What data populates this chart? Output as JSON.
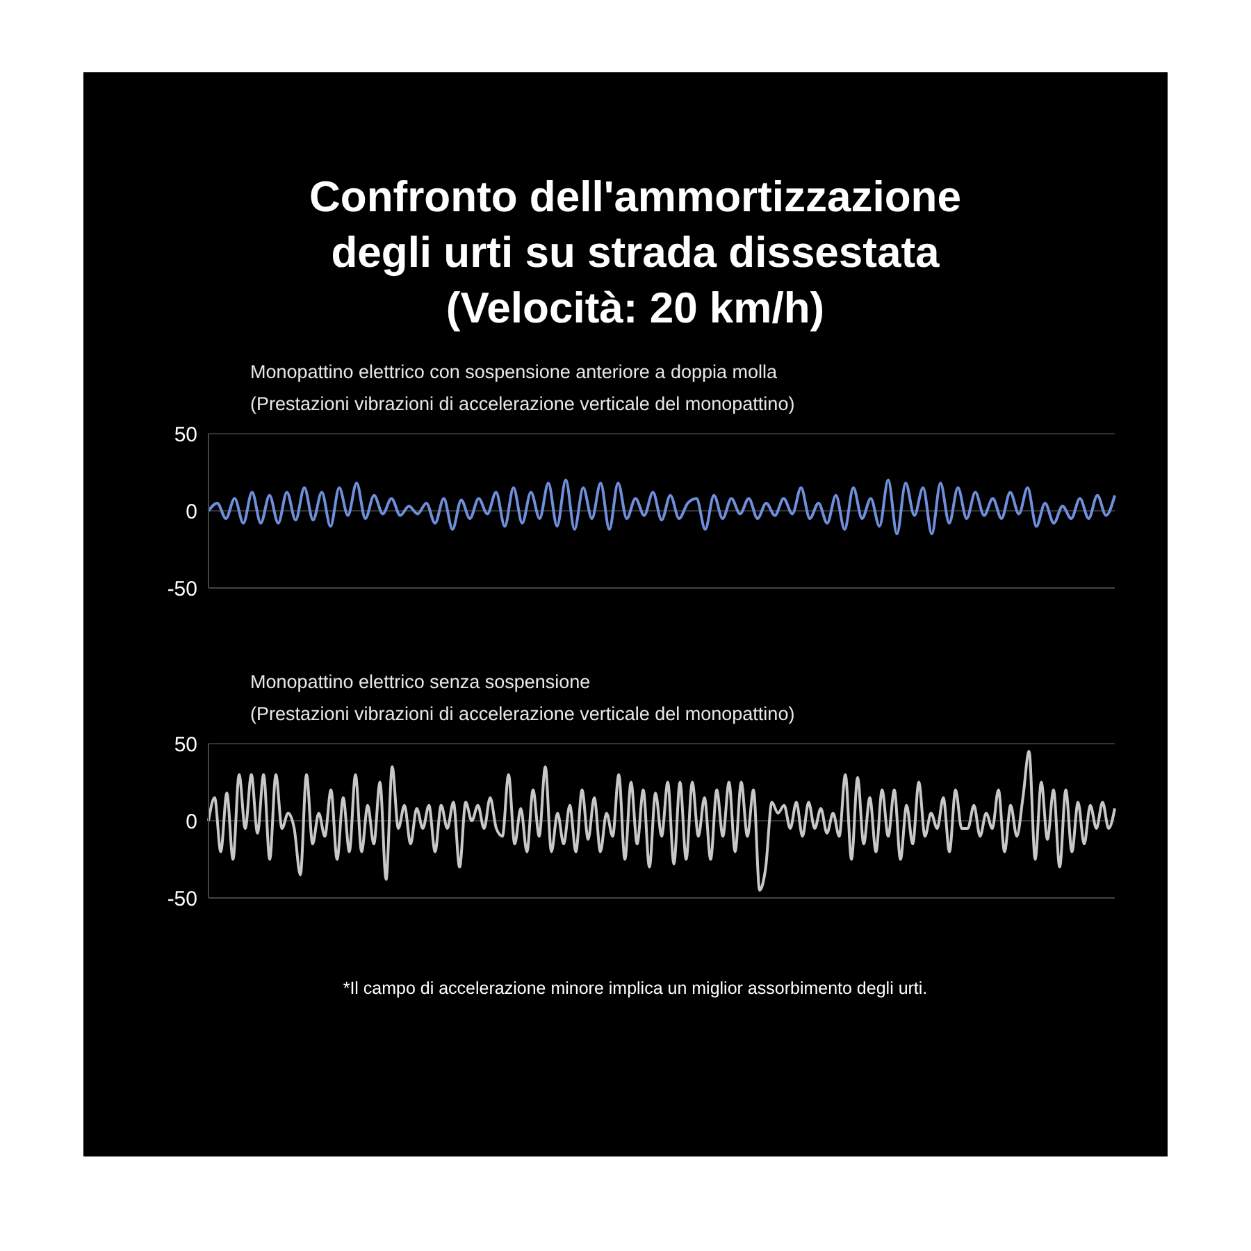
{
  "chart_data": [
    {
      "type": "line",
      "title": "Confronto dell'ammortizzazione\ndegli urti su strada dissestata\n(Velocità: 20 km/h)",
      "subtitle": "Monopattino elettrico con sospensione anteriore a doppia molla\n(Prestazioni vibrazioni di accelerazione verticale del monopattino)",
      "categories": [
        null,
        null,
        null,
        null,
        null,
        null,
        null,
        null,
        null,
        null,
        null,
        null,
        null,
        null,
        null,
        null,
        null,
        null,
        null,
        null,
        null,
        null,
        null,
        null,
        null,
        null,
        null,
        null,
        null,
        null,
        null,
        null,
        null,
        null,
        null,
        null,
        null,
        null,
        null,
        null,
        null,
        null,
        null,
        null,
        null,
        null,
        null,
        null,
        null,
        null,
        null,
        null,
        null,
        null,
        null,
        null,
        null,
        null,
        null,
        null,
        null,
        null,
        null,
        null,
        null,
        null,
        null,
        null,
        null,
        null,
        null,
        null,
        null,
        null,
        null,
        null,
        null,
        null,
        null,
        null,
        null,
        null,
        null,
        null,
        null,
        null,
        null,
        null,
        null,
        null,
        null,
        null,
        null,
        null,
        null,
        null,
        null,
        null,
        null,
        null,
        null,
        null,
        null,
        null,
        null
      ],
      "series": [
        {
          "color": "#6f8fdc",
          "values": [
            0,
            5,
            -5,
            8,
            -8,
            12,
            -8,
            10,
            -8,
            12,
            -6,
            15,
            -6,
            12,
            -10,
            15,
            -3,
            18,
            -5,
            10,
            -2,
            8,
            -3,
            3,
            -2,
            5,
            -8,
            8,
            -12,
            7,
            -5,
            8,
            -2,
            12,
            -10,
            15,
            -8,
            12,
            -5,
            18,
            -10,
            20,
            -12,
            15,
            -5,
            18,
            -12,
            18,
            -5,
            8,
            -3,
            12,
            -6,
            10,
            -5,
            5,
            8,
            -12,
            10,
            -5,
            8,
            -2,
            8,
            -5,
            5,
            -3,
            8,
            -2,
            15,
            -5,
            5,
            -8,
            10,
            -12,
            15,
            -5,
            8,
            -10,
            20,
            -15,
            18,
            -3,
            15,
            -15,
            18,
            -8,
            15,
            -5,
            12,
            -3,
            8,
            -5,
            12,
            -2,
            15,
            -10,
            5,
            -8,
            3,
            -5,
            8,
            -5,
            10,
            -3,
            10
          ]
        }
      ],
      "ylim": [
        -50,
        50
      ],
      "yticks": [
        -50,
        0,
        50
      ],
      "grid": "y",
      "line_style": "solid",
      "marker": "none",
      "tick_labels": "y"
    },
    {
      "type": "line",
      "subtitle": "Monopattino elettrico senza sospensione\n(Prestazioni vibrazioni di accelerazione verticale del monopattino)",
      "annotations": [
        "*Il campo di accelerazione minore implica un miglior assorbimento degli urti."
      ],
      "categories": [
        null,
        null,
        null,
        null,
        null,
        null,
        null,
        null,
        null,
        null,
        null,
        null,
        null,
        null,
        null,
        null,
        null,
        null,
        null,
        null,
        null,
        null,
        null,
        null,
        null,
        null,
        null,
        null,
        null,
        null,
        null,
        null,
        null,
        null,
        null,
        null,
        null,
        null,
        null,
        null,
        null,
        null,
        null,
        null,
        null,
        null,
        null,
        null,
        null,
        null,
        null,
        null,
        null,
        null,
        null,
        null,
        null,
        null,
        null,
        null,
        null,
        null,
        null,
        null,
        null,
        null,
        null,
        null,
        null,
        null,
        null,
        null,
        null,
        null,
        null,
        null,
        null,
        null,
        null,
        null,
        null,
        null,
        null,
        null,
        null,
        null,
        null,
        null,
        null,
        null,
        null,
        null,
        null,
        null,
        null,
        null,
        null,
        null,
        null,
        null,
        null,
        null,
        null,
        null,
        null,
        null,
        null,
        null,
        null,
        null,
        null,
        null,
        null,
        null,
        null,
        null,
        null,
        null,
        null,
        null,
        null,
        null,
        null,
        null,
        null,
        null,
        null,
        null,
        null,
        null,
        null,
        null,
        null,
        null,
        null,
        null,
        null,
        null,
        null,
        null,
        null,
        null,
        null,
        null,
        null,
        null,
        null,
        null,
        null
      ],
      "series": [
        {
          "color": "#c8c8c8",
          "values": [
            0,
            15,
            -20,
            18,
            -25,
            30,
            -5,
            30,
            -8,
            30,
            -25,
            30,
            -5,
            5,
            -5,
            -35,
            30,
            -15,
            5,
            -10,
            20,
            -25,
            15,
            -20,
            30,
            -20,
            10,
            -15,
            25,
            -38,
            35,
            -5,
            10,
            -15,
            8,
            -5,
            10,
            -20,
            10,
            -5,
            12,
            -30,
            12,
            0,
            10,
            -5,
            15,
            -5,
            -10,
            30,
            -15,
            8,
            -20,
            20,
            -10,
            35,
            -20,
            5,
            -15,
            10,
            -20,
            20,
            -12,
            15,
            -20,
            5,
            -10,
            30,
            -25,
            25,
            -15,
            20,
            -30,
            18,
            -10,
            25,
            -28,
            25,
            -25,
            25,
            -10,
            15,
            -25,
            20,
            -10,
            25,
            -20,
            25,
            -10,
            20,
            -45,
            -30,
            12,
            5,
            10,
            -5,
            12,
            -10,
            12,
            -5,
            8,
            -8,
            5,
            -10,
            30,
            -25,
            28,
            -15,
            15,
            -20,
            20,
            -10,
            20,
            -25,
            10,
            -15,
            25,
            -10,
            5,
            -5,
            15,
            -20,
            20,
            -5,
            -5,
            10,
            -10,
            5,
            -5,
            20,
            -20,
            10,
            -10,
            15,
            45,
            -25,
            25,
            -12,
            20,
            -30,
            20,
            -20,
            12,
            -15,
            10,
            -5,
            12,
            -5,
            8
          ]
        }
      ],
      "ylim": [
        -50,
        50
      ],
      "yticks": [
        -50,
        0,
        50
      ],
      "grid": "y",
      "line_style": "solid",
      "marker": "none",
      "tick_labels": "y"
    }
  ]
}
